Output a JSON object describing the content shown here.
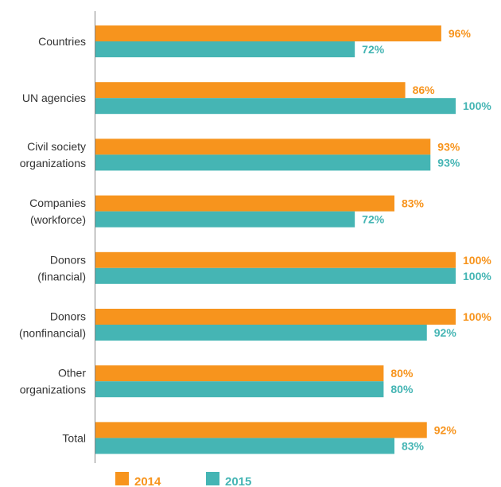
{
  "chart_data": {
    "type": "bar",
    "orientation": "horizontal",
    "categories": [
      [
        "Countries"
      ],
      [
        "UN agencies"
      ],
      [
        "Civil society",
        "organizations"
      ],
      [
        "Companies",
        "(workforce)"
      ],
      [
        "Donors",
        "(financial)"
      ],
      [
        "Donors",
        "(nonfinancial)"
      ],
      [
        "Other",
        "organizations"
      ],
      [
        "Total"
      ]
    ],
    "series": [
      {
        "name": "2014",
        "color": "#f7941d",
        "values": [
          96,
          86,
          93,
          83,
          100,
          100,
          80,
          92
        ],
        "labels": [
          "96%",
          "86%",
          "93%",
          "83%",
          "100%",
          "100%",
          "80%",
          "92%"
        ]
      },
      {
        "name": "2015",
        "color": "#45b5b4",
        "values": [
          72,
          100,
          93,
          72,
          100,
          92,
          80,
          83
        ],
        "labels": [
          "72%",
          "100%",
          "93%",
          "72%",
          "100%",
          "92%",
          "80%",
          "83%"
        ]
      }
    ],
    "xlim": [
      0,
      100
    ],
    "grid": false,
    "legend_position": "bottom-left"
  }
}
